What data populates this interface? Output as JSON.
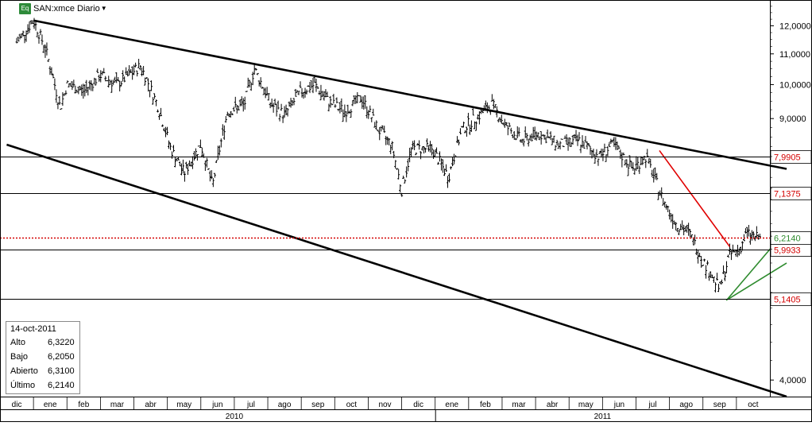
{
  "header": {
    "symbol_badge": "Eq",
    "title": "SAN:xmce Diario",
    "dropdown_icon": "caret-down-icon"
  },
  "info_box": {
    "date": "14-oct-2011",
    "rows": [
      {
        "label": "Alto",
        "value": "6,3220"
      },
      {
        "label": "Bajo",
        "value": "6,2050"
      },
      {
        "label": "Abierto",
        "value": "6,3100"
      },
      {
        "label": "Último",
        "value": "6,2140"
      }
    ]
  },
  "chart_data": {
    "type": "bar",
    "subtype": "ohlc-daily",
    "title": "SAN:xmce Diario",
    "y_axis": {
      "side": "right",
      "scale": "log",
      "ticks": [
        "12,0000",
        "11,0000",
        "10,0000",
        "9,0000",
        "4,0000"
      ],
      "tick_values": [
        12,
        11,
        10,
        9,
        4
      ],
      "ylim": [
        3.8,
        13
      ]
    },
    "x_axis": {
      "months": [
        "dic",
        "ene",
        "feb",
        "mar",
        "abr",
        "may",
        "jun",
        "jul",
        "ago",
        "sep",
        "oct",
        "nov",
        "dic",
        "ene",
        "feb",
        "mar",
        "abr",
        "may",
        "jun",
        "jul",
        "ago",
        "sep",
        "oct"
      ],
      "years": [
        "2010",
        "2011"
      ]
    },
    "series": [
      {
        "name": "SAN:xmce",
        "color": "#000000",
        "type": "ohlc",
        "points": [
          [
            0,
            11.4
          ],
          [
            0.5,
            12.2
          ],
          [
            0.85,
            11.2
          ],
          [
            1.3,
            9.3
          ],
          [
            1.5,
            10.0
          ],
          [
            2,
            9.8
          ],
          [
            2.5,
            10.3
          ],
          [
            3,
            10.0
          ],
          [
            3.7,
            10.6
          ],
          [
            4.2,
            9.4
          ],
          [
            4.6,
            8.2
          ],
          [
            5,
            7.6
          ],
          [
            5.5,
            8.3
          ],
          [
            5.85,
            7.3
          ],
          [
            6.3,
            9.2
          ],
          [
            6.8,
            9.4
          ],
          [
            7.1,
            10.5
          ],
          [
            7.6,
            9.4
          ],
          [
            8.0,
            9.1
          ],
          [
            8.5,
            9.8
          ],
          [
            8.9,
            10.0
          ],
          [
            9.3,
            9.5
          ],
          [
            9.8,
            9.2
          ],
          [
            10.3,
            9.6
          ],
          [
            10.8,
            8.7
          ],
          [
            11.2,
            8.3
          ],
          [
            11.5,
            7.2
          ],
          [
            11.8,
            8.2
          ],
          [
            12.4,
            8.2
          ],
          [
            12.9,
            7.5
          ],
          [
            13.3,
            8.7
          ],
          [
            13.7,
            9.0
          ],
          [
            14.2,
            9.4
          ],
          [
            14.6,
            8.8
          ],
          [
            15.1,
            8.4
          ],
          [
            15.6,
            8.6
          ],
          [
            16.2,
            8.3
          ],
          [
            16.8,
            8.4
          ],
          [
            17.4,
            8.0
          ],
          [
            17.8,
            8.3
          ],
          [
            18.4,
            7.7
          ],
          [
            18.8,
            8.0
          ],
          [
            19.3,
            7.0
          ],
          [
            19.7,
            6.5
          ],
          [
            20.1,
            6.3
          ],
          [
            20.5,
            5.8
          ],
          [
            21.0,
            5.3
          ],
          [
            21.3,
            5.9
          ],
          [
            21.6,
            6.0
          ],
          [
            21.8,
            6.3
          ],
          [
            22.2,
            6.2
          ]
        ]
      }
    ],
    "horizontal_levels": [
      {
        "value": 7.9905,
        "label": "7,9905",
        "color": "#000000",
        "label_color": "#d40000"
      },
      {
        "value": 7.1375,
        "label": "7,1375",
        "color": "#000000",
        "label_color": "#d40000"
      },
      {
        "value": 5.9933,
        "label": "5,9933",
        "color": "#000000",
        "label_color": "#d40000"
      },
      {
        "value": 5.1405,
        "label": "5,1405",
        "color": "#000000",
        "label_color": "#d40000"
      }
    ],
    "last_price": {
      "value": 6.214,
      "label": "6,2140",
      "style": "dotted",
      "color": "#d40000"
    },
    "trendlines": [
      {
        "role": "channel-upper",
        "color": "#000000",
        "points": [
          [
            0.5,
            12.2
          ],
          [
            23,
            7.7
          ]
        ]
      },
      {
        "role": "channel-lower",
        "color": "#000000",
        "points": [
          [
            -0.3,
            8.3
          ],
          [
            23,
            3.8
          ]
        ]
      },
      {
        "role": "resistance",
        "color": "#e00000",
        "points": [
          [
            19.2,
            8.15
          ],
          [
            21.3,
            6.05
          ]
        ]
      },
      {
        "role": "support",
        "color": "#2e8b2e",
        "points": [
          [
            21.2,
            5.12
          ],
          [
            22.9,
            6.3
          ]
        ]
      },
      {
        "role": "support",
        "color": "#2e8b2e",
        "points": [
          [
            21.25,
            5.14
          ],
          [
            23,
            5.75
          ]
        ]
      }
    ],
    "grid": false,
    "legend": "none"
  }
}
